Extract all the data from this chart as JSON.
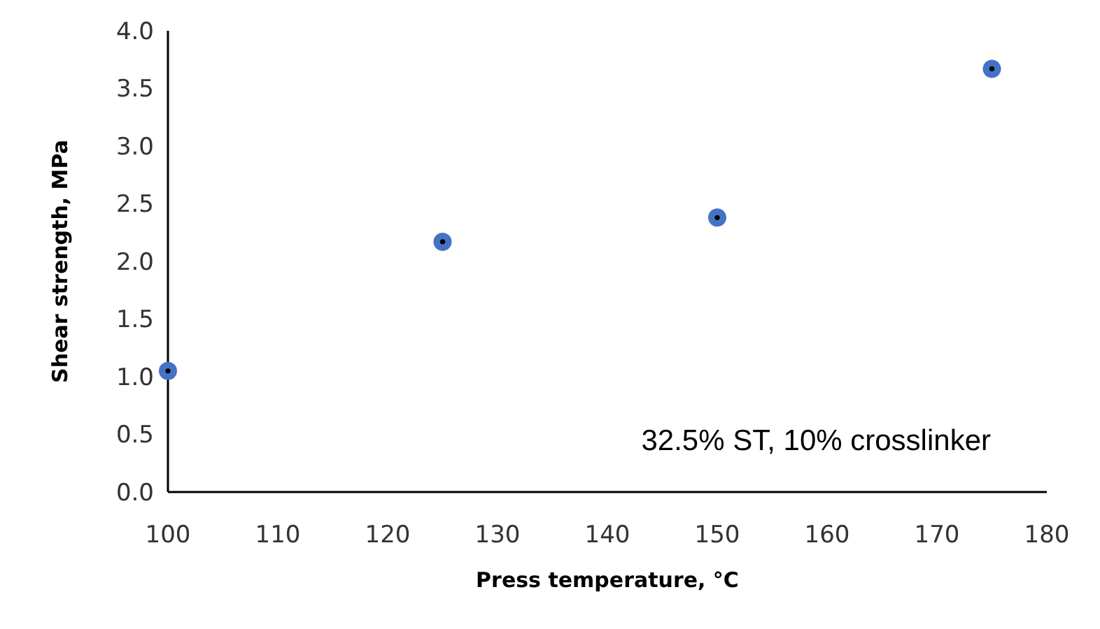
{
  "chart_data": {
    "type": "scatter",
    "xlabel": "Press temperature, °C",
    "ylabel": "Shear strength, MPa",
    "x": [
      100,
      125,
      150,
      175
    ],
    "series": [
      {
        "color": "#4472c4",
        "values": [
          1.05,
          2.17,
          2.38,
          3.67
        ]
      }
    ],
    "xlim": [
      100,
      180
    ],
    "xticks": [
      100,
      110,
      120,
      130,
      140,
      150,
      160,
      170,
      180
    ],
    "ylim": [
      0,
      4
    ],
    "yticks": [
      {
        "value": 0,
        "label": "0.0"
      },
      {
        "value": 0.5,
        "label": "0.5"
      },
      {
        "value": 1,
        "label": "1.0"
      },
      {
        "value": 1.5,
        "label": "1.5"
      },
      {
        "value": 2,
        "label": "2.0"
      },
      {
        "value": 2.5,
        "label": "2.5"
      },
      {
        "value": 3,
        "label": "3.0"
      },
      {
        "value": 3.5,
        "label": "3.5"
      },
      {
        "value": 4,
        "label": "4.0"
      }
    ],
    "marker": "circle",
    "annotations": [
      "32.5% ST, 10% crosslinker"
    ]
  }
}
